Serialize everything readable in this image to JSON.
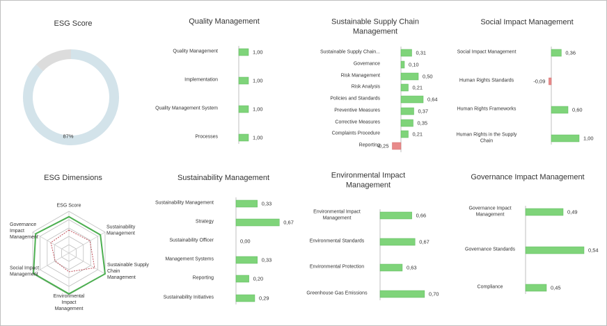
{
  "chart_data": [
    {
      "type": "pie",
      "title": "ESG Score",
      "values": [
        87,
        13
      ],
      "value_labels": [
        "87%",
        null
      ],
      "colors": [
        "#d3e3ea",
        "#dcdcdc"
      ]
    },
    {
      "type": "radar",
      "title": "ESG Dimensions",
      "categories": [
        "ESG Score",
        "Sustainability Management",
        "Sustainable Supply Chain Management",
        "Environmental Impact Management",
        "Social Impact Management",
        "Governance Impact Management"
      ],
      "ylim": [
        0,
        1
      ],
      "series": [
        {
          "color": "#4caf50",
          "line_style": "solid",
          "values": [
            0.87,
            0.87,
            1.0,
            0.98,
            0.98,
            0.92
          ]
        },
        {
          "color": "#c0505a",
          "line_style": "dashed",
          "values": [
            0.55,
            0.58,
            0.71,
            0.45,
            0.38,
            0.5
          ]
        }
      ]
    },
    {
      "type": "bar",
      "orientation": "horizontal",
      "title": "Quality Management",
      "categories": [
        "Quality Management",
        "Implementation",
        "Quality Management System",
        "Processes"
      ],
      "values": [
        1.0,
        1.0,
        1.0,
        1.0
      ],
      "value_labels": [
        "1,00",
        "1,00",
        "1,00",
        "1,00"
      ],
      "xlim": [
        0,
        5
      ],
      "color": "#7fd47a",
      "negative_color": "#e88a8a"
    },
    {
      "type": "bar",
      "orientation": "horizontal",
      "title": "Sustainable Supply Chain Management",
      "categories": [
        "Sustainable Supply Chain...",
        "Governance",
        "Risk Management",
        "Risk Analysis",
        "Policies and Standards",
        "Preventive Measures",
        "Corrective Measures",
        "Complaints Procedure",
        "Reporting"
      ],
      "values": [
        0.31,
        0.1,
        0.5,
        0.21,
        0.64,
        0.37,
        0.35,
        0.21,
        -0.25
      ],
      "value_labels": [
        "0,31",
        "0,10",
        "0,50",
        "0,21",
        "0,64",
        "0,37",
        "0,35",
        "0,21",
        "-0,25"
      ],
      "xlim": [
        -0.5,
        1
      ],
      "color": "#7fd47a",
      "negative_color": "#e88a8a"
    },
    {
      "type": "bar",
      "orientation": "horizontal",
      "title": "Social Impact Management",
      "categories": [
        "Social Impact Management",
        "Human Rights Standards",
        "Human Rights Frameworks",
        "Human Rights in the Supply Chain"
      ],
      "values": [
        0.36,
        -0.09,
        0.6,
        1.0
      ],
      "value_labels": [
        "0,36",
        "-0,09",
        "0,60",
        "1,00"
      ],
      "xlim": [
        -0.5,
        1
      ],
      "color": "#7fd47a",
      "negative_color": "#e88a8a"
    },
    {
      "type": "bar",
      "orientation": "horizontal",
      "title": "Sustainability Management",
      "categories": [
        "Sustainability Management",
        "Strategy",
        "Sustainability Officer",
        "Management Systems",
        "Reporting",
        "Sustainability Initiatives"
      ],
      "values": [
        0.33,
        0.67,
        0.0,
        0.33,
        0.2,
        0.29
      ],
      "value_labels": [
        "0,33",
        "0,67",
        "0,00",
        "0,33",
        "0,20",
        "0,29"
      ],
      "xlim": [
        0,
        1
      ],
      "color": "#7fd47a",
      "negative_color": "#e88a8a"
    },
    {
      "type": "bar",
      "orientation": "horizontal",
      "title": "Environmental Impact Management",
      "categories": [
        "Environmental Impact Management",
        "Environmental Standards",
        "Environmental Protection",
        "Greenhouse Gas Emissions"
      ],
      "values": [
        0.66,
        0.67,
        0.63,
        0.7
      ],
      "value_labels": [
        "0,66",
        "0,67",
        "0,63",
        "0,70"
      ],
      "xlim": [
        0.56,
        0.72
      ],
      "color": "#7fd47a",
      "negative_color": "#e88a8a"
    },
    {
      "type": "bar",
      "orientation": "horizontal",
      "title": "Governance Impact Management",
      "categories": [
        "Governance Impact Management",
        "Governance Standards",
        "Compliance"
      ],
      "values": [
        0.49,
        0.54,
        0.45
      ],
      "value_labels": [
        "0,49",
        "0,54",
        "0,45"
      ],
      "xlim": [
        0.4,
        0.56
      ],
      "color": "#7fd47a",
      "negative_color": "#e88a8a"
    }
  ]
}
